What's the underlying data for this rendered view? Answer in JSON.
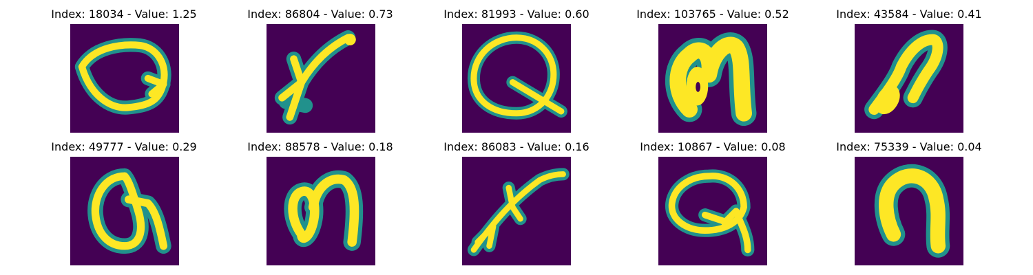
{
  "colors": {
    "background": "#440154",
    "stroke_core": "#fde725",
    "stroke_mid": "#5ec962",
    "stroke_edge": "#21918c"
  },
  "panels": [
    {
      "title": "Index: 18034 - Value: 1.25",
      "glyph": "loop-with-tail"
    },
    {
      "title": "Index: 86804 - Value: 0.73",
      "glyph": "slanted-y-stroke"
    },
    {
      "title": "Index: 81993 - Value: 0.60",
      "glyph": "q-shape"
    },
    {
      "title": "Index: 103765 - Value: 0.52",
      "glyph": "thick-hook"
    },
    {
      "title": "Index: 43584 - Value: 0.41",
      "glyph": "thick-slanted-hook"
    },
    {
      "title": "Index: 49777 - Value: 0.29",
      "glyph": "a-shape"
    },
    {
      "title": "Index: 88578 - Value: 0.18",
      "glyph": "loop-hook"
    },
    {
      "title": "Index: 86083 - Value: 0.16",
      "glyph": "slanted-scribble"
    },
    {
      "title": "Index: 10867 - Value: 0.08",
      "glyph": "q-shape-tail"
    },
    {
      "title": "Index: 75339 - Value: 0.04",
      "glyph": "arch-n-shape"
    }
  ]
}
